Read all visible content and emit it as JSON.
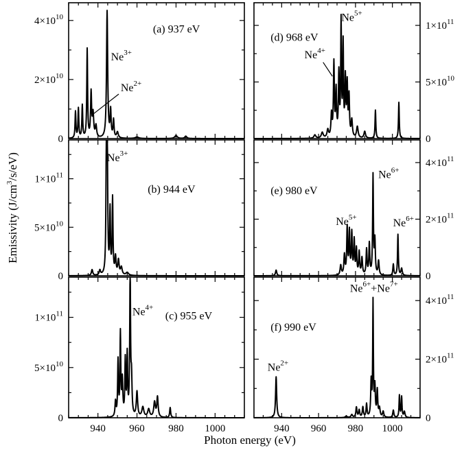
{
  "figure": {
    "xlabel": "Photon energy (eV)",
    "ylabel_parts": [
      "Emissivity (J/cm",
      "3",
      "/s/eV)"
    ]
  },
  "chart_data": [
    {
      "type": "line",
      "id": "a",
      "label": "(a) 937 eV",
      "xlim": [
        925,
        1015
      ],
      "ylim": [
        0,
        46000000000.0
      ],
      "yaxis_side": "left",
      "yticks": [
        {
          "value": 0,
          "mant": "0",
          "exp": ""
        },
        {
          "value": 20000000000.0,
          "mant": "2×10",
          "exp": "10"
        },
        {
          "value": 40000000000.0,
          "mant": "4×10",
          "exp": "10"
        }
      ],
      "annotations": [
        {
          "ion": "Ne",
          "charge": "3+",
          "x": 952,
          "y": 26500000000.0
        },
        {
          "ion": "Ne",
          "charge": "2+",
          "x": 957,
          "y": 16000000000.0,
          "arrow_to": [
            937,
            8000000000.0
          ]
        }
      ],
      "peaks": [
        [
          928.5,
          9000000000.0,
          0.25
        ],
        [
          930,
          10000000000.0,
          0.25
        ],
        [
          932,
          11000000000.0,
          0.25
        ],
        [
          934.5,
          30000000000.0,
          0.25
        ],
        [
          936.5,
          15000000000.0,
          0.3
        ],
        [
          937.5,
          8000000000.0,
          0.4
        ],
        [
          939,
          4000000000.0,
          0.4
        ],
        [
          944.7,
          43000000000.0,
          0.35
        ],
        [
          946.5,
          9000000000.0,
          0.3
        ],
        [
          948,
          6000000000.0,
          0.3
        ],
        [
          950,
          2000000000.0,
          0.5
        ],
        [
          960,
          500000000.0,
          1.0
        ],
        [
          980,
          1000000000.0,
          0.8
        ],
        [
          985,
          800000000.0,
          0.6
        ]
      ]
    },
    {
      "type": "line",
      "id": "b",
      "label": "(b) 944 eV",
      "xlim": [
        925,
        1015
      ],
      "ylim": [
        0,
        140000000000.0
      ],
      "yaxis_side": "left",
      "yticks": [
        {
          "value": 0,
          "mant": "0",
          "exp": ""
        },
        {
          "value": 50000000000.0,
          "mant": "5×10",
          "exp": "10"
        },
        {
          "value": 100000000000.0,
          "mant": "1×10",
          "exp": "11"
        }
      ],
      "annotations": [
        {
          "ion": "Ne",
          "charge": "3+",
          "x": 950,
          "y": 118000000000.0
        }
      ],
      "peaks": [
        [
          937,
          6000000000.0,
          0.4
        ],
        [
          941,
          5000000000.0,
          0.4
        ],
        [
          944.3,
          115000000000.0,
          0.25
        ],
        [
          944.8,
          125000000000.0,
          0.25
        ],
        [
          946.2,
          65000000000.0,
          0.25
        ],
        [
          947.5,
          78000000000.0,
          0.25
        ],
        [
          949,
          18000000000.0,
          0.35
        ],
        [
          950.5,
          15000000000.0,
          0.4
        ],
        [
          952,
          8000000000.0,
          0.5
        ],
        [
          955,
          3000000000.0,
          0.8
        ]
      ]
    },
    {
      "type": "line",
      "id": "c",
      "label": "(c) 955 eV",
      "xlim": [
        925,
        1015
      ],
      "ylim": [
        0,
        140000000000.0
      ],
      "yaxis_side": "left",
      "yticks": [
        {
          "value": 0,
          "mant": "0",
          "exp": ""
        },
        {
          "value": 50000000000.0,
          "mant": "5×10",
          "exp": "10"
        },
        {
          "value": 100000000000.0,
          "mant": "1×10",
          "exp": "11"
        }
      ],
      "annotations": [
        {
          "ion": "Ne",
          "charge": "4+",
          "x": 963,
          "y": 102000000000.0
        }
      ],
      "peaks": [
        [
          949,
          15000000000.0,
          0.3
        ],
        [
          950.3,
          55000000000.0,
          0.25
        ],
        [
          951.5,
          82000000000.0,
          0.25
        ],
        [
          952.5,
          35000000000.0,
          0.3
        ],
        [
          954,
          55000000000.0,
          0.25
        ],
        [
          955,
          60000000000.0,
          0.25
        ],
        [
          956.5,
          145000000000.0,
          0.25
        ],
        [
          957.2,
          35000000000.0,
          0.3
        ],
        [
          960,
          25000000000.0,
          0.4
        ],
        [
          963,
          10000000000.0,
          0.6
        ],
        [
          966,
          8000000000.0,
          0.6
        ],
        [
          969,
          15000000000.0,
          0.5
        ],
        [
          970.5,
          20000000000.0,
          0.4
        ],
        [
          977,
          10000000000.0,
          0.3
        ]
      ]
    },
    {
      "type": "line",
      "id": "d",
      "label": "(d) 968 eV",
      "xlim": [
        925,
        1015
      ],
      "ylim": [
        0,
        120000000000.0
      ],
      "yaxis_side": "right",
      "yticks": [
        {
          "value": 0,
          "mant": "0",
          "exp": ""
        },
        {
          "value": 50000000000.0,
          "mant": "5×10",
          "exp": "10"
        },
        {
          "value": 100000000000.0,
          "mant": "1×10",
          "exp": "11"
        }
      ],
      "annotations": [
        {
          "ion": "Ne",
          "charge": "5+",
          "x": 978,
          "y": 104000000000.0
        },
        {
          "ion": "Ne",
          "charge": "4+",
          "x": 958,
          "y": 71000000000.0,
          "arrow_to": [
            967.5,
            55000000000.0
          ]
        }
      ],
      "peaks": [
        [
          958,
          3000000000.0,
          0.6
        ],
        [
          962,
          5000000000.0,
          0.6
        ],
        [
          965,
          7000000000.0,
          0.5
        ],
        [
          967,
          20000000000.0,
          0.35
        ],
        [
          968.3,
          65000000000.0,
          0.3
        ],
        [
          969.5,
          40000000000.0,
          0.3
        ],
        [
          971,
          55000000000.0,
          0.3
        ],
        [
          972.2,
          100000000000.0,
          0.25
        ],
        [
          973.3,
          80000000000.0,
          0.25
        ],
        [
          974.5,
          50000000000.0,
          0.3
        ],
        [
          975.5,
          45000000000.0,
          0.3
        ],
        [
          976.5,
          35000000000.0,
          0.3
        ],
        [
          978,
          15000000000.0,
          0.4
        ],
        [
          981,
          10000000000.0,
          0.5
        ],
        [
          985,
          6000000000.0,
          0.5
        ],
        [
          990.8,
          25000000000.0,
          0.25
        ],
        [
          1003.5,
          32000000000.0,
          0.25
        ]
      ]
    },
    {
      "type": "line",
      "id": "e",
      "label": "(e) 980 eV",
      "xlim": [
        925,
        1015
      ],
      "ylim": [
        0,
        480000000000.0
      ],
      "yaxis_side": "right",
      "yticks": [
        {
          "value": 0,
          "mant": "0",
          "exp": ""
        },
        {
          "value": 200000000000.0,
          "mant": "2×10",
          "exp": "11"
        },
        {
          "value": 400000000000.0,
          "mant": "4×10",
          "exp": "11"
        }
      ],
      "annotations": [
        {
          "ion": "Ne",
          "charge": "6+",
          "x": 998,
          "y": 345000000000.0
        },
        {
          "ion": "Ne",
          "charge": "5+",
          "x": 975,
          "y": 180000000000.0
        },
        {
          "ion": "Ne",
          "charge": "6+",
          "x": 1006,
          "y": 175000000000.0
        }
      ],
      "peaks": [
        [
          937,
          20000000000.0,
          0.4
        ],
        [
          972,
          35000000000.0,
          0.4
        ],
        [
          974,
          70000000000.0,
          0.35
        ],
        [
          975.5,
          165000000000.0,
          0.3
        ],
        [
          976.7,
          150000000000.0,
          0.3
        ],
        [
          978,
          145000000000.0,
          0.3
        ],
        [
          979.3,
          120000000000.0,
          0.3
        ],
        [
          980.5,
          90000000000.0,
          0.3
        ],
        [
          982,
          80000000000.0,
          0.3
        ],
        [
          983.5,
          60000000000.0,
          0.35
        ],
        [
          986,
          90000000000.0,
          0.3
        ],
        [
          987.5,
          110000000000.0,
          0.3
        ],
        [
          989.5,
          350000000000.0,
          0.25
        ],
        [
          990.5,
          120000000000.0,
          0.3
        ],
        [
          992.5,
          50000000000.0,
          0.35
        ],
        [
          1000.5,
          40000000000.0,
          0.3
        ],
        [
          1003,
          145000000000.0,
          0.25
        ],
        [
          1005,
          25000000000.0,
          0.4
        ]
      ]
    },
    {
      "type": "line",
      "id": "f",
      "label": "(f) 990 eV",
      "xlim": [
        925,
        1015
      ],
      "ylim": [
        0,
        480000000000.0
      ],
      "yaxis_side": "right",
      "yticks": [
        {
          "value": 0,
          "mant": "0",
          "exp": ""
        },
        {
          "value": 200000000000.0,
          "mant": "2×10",
          "exp": "11"
        },
        {
          "value": 400000000000.0,
          "mant": "4×10",
          "exp": "11"
        }
      ],
      "annotations": [
        {
          "ion": "Ne",
          "charge": "6+",
          "ion2": "Ne",
          "charge2": "7+",
          "x": 990,
          "y": 430000000000.0
        },
        {
          "ion": "Ne",
          "charge": "2+",
          "x": 938,
          "y": 160000000000.0
        }
      ],
      "peaks": [
        [
          937,
          140000000000.0,
          0.35
        ],
        [
          975,
          5000000000.0,
          0.6
        ],
        [
          978,
          10000000000.0,
          0.5
        ],
        [
          980.5,
          35000000000.0,
          0.35
        ],
        [
          982,
          25000000000.0,
          0.35
        ],
        [
          984,
          35000000000.0,
          0.35
        ],
        [
          986,
          45000000000.0,
          0.3
        ],
        [
          988.5,
          120000000000.0,
          0.3
        ],
        [
          989.5,
          390000000000.0,
          0.22
        ],
        [
          990.5,
          100000000000.0,
          0.3
        ],
        [
          991.8,
          90000000000.0,
          0.3
        ],
        [
          993,
          30000000000.0,
          0.4
        ],
        [
          995,
          20000000000.0,
          0.4
        ],
        [
          1000.5,
          25000000000.0,
          0.35
        ],
        [
          1003.8,
          75000000000.0,
          0.25
        ],
        [
          1005,
          70000000000.0,
          0.25
        ],
        [
          1006.5,
          20000000000.0,
          0.4
        ]
      ]
    }
  ],
  "xticks": [
    940,
    960,
    980,
    1000
  ]
}
